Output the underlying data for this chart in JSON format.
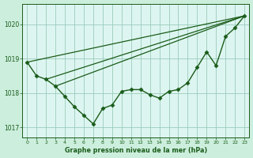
{
  "title": "Graphe pression niveau de la mer (hPa)",
  "bg_color": "#cceedd",
  "plot_bg_color": "#ddf5f0",
  "grid_color": "#99ccbb",
  "line_color": "#1a5c1a",
  "xlim": [
    -0.5,
    23.5
  ],
  "ylim": [
    1016.7,
    1020.6
  ],
  "yticks": [
    1017,
    1018,
    1019,
    1020
  ],
  "xtick_labels": [
    "0",
    "1",
    "2",
    "3",
    "4",
    "5",
    "6",
    "7",
    "8",
    "9",
    "10",
    "11",
    "12",
    "13",
    "14",
    "15",
    "16",
    "17",
    "18",
    "19",
    "20",
    "21",
    "22",
    "23"
  ],
  "xticks": [
    0,
    1,
    2,
    3,
    4,
    5,
    6,
    7,
    8,
    9,
    10,
    11,
    12,
    13,
    14,
    15,
    16,
    17,
    18,
    19,
    20,
    21,
    22,
    23
  ],
  "series_main": {
    "x": [
      0,
      1,
      2,
      3,
      4,
      5,
      6,
      7,
      8,
      9,
      10,
      11,
      12,
      13,
      14,
      15,
      16,
      17,
      18,
      19,
      20,
      21,
      22,
      23
    ],
    "y": [
      1018.9,
      1018.5,
      1018.4,
      1018.2,
      1017.9,
      1017.6,
      1017.35,
      1017.1,
      1017.55,
      1017.65,
      1018.05,
      1018.1,
      1018.1,
      1017.95,
      1017.85,
      1018.05,
      1018.1,
      1018.3,
      1018.75,
      1019.2,
      1018.8,
      1019.65,
      1019.9,
      1020.25
    ],
    "marker": "D",
    "markersize": 2.5,
    "linewidth": 1.0
  },
  "series_straight": [
    {
      "x": [
        0,
        23
      ],
      "y": [
        1018.9,
        1020.25
      ],
      "linewidth": 0.9
    },
    {
      "x": [
        2,
        23
      ],
      "y": [
        1018.4,
        1020.25
      ],
      "linewidth": 0.9
    },
    {
      "x": [
        3,
        23
      ],
      "y": [
        1018.2,
        1020.25
      ],
      "linewidth": 0.9
    }
  ]
}
